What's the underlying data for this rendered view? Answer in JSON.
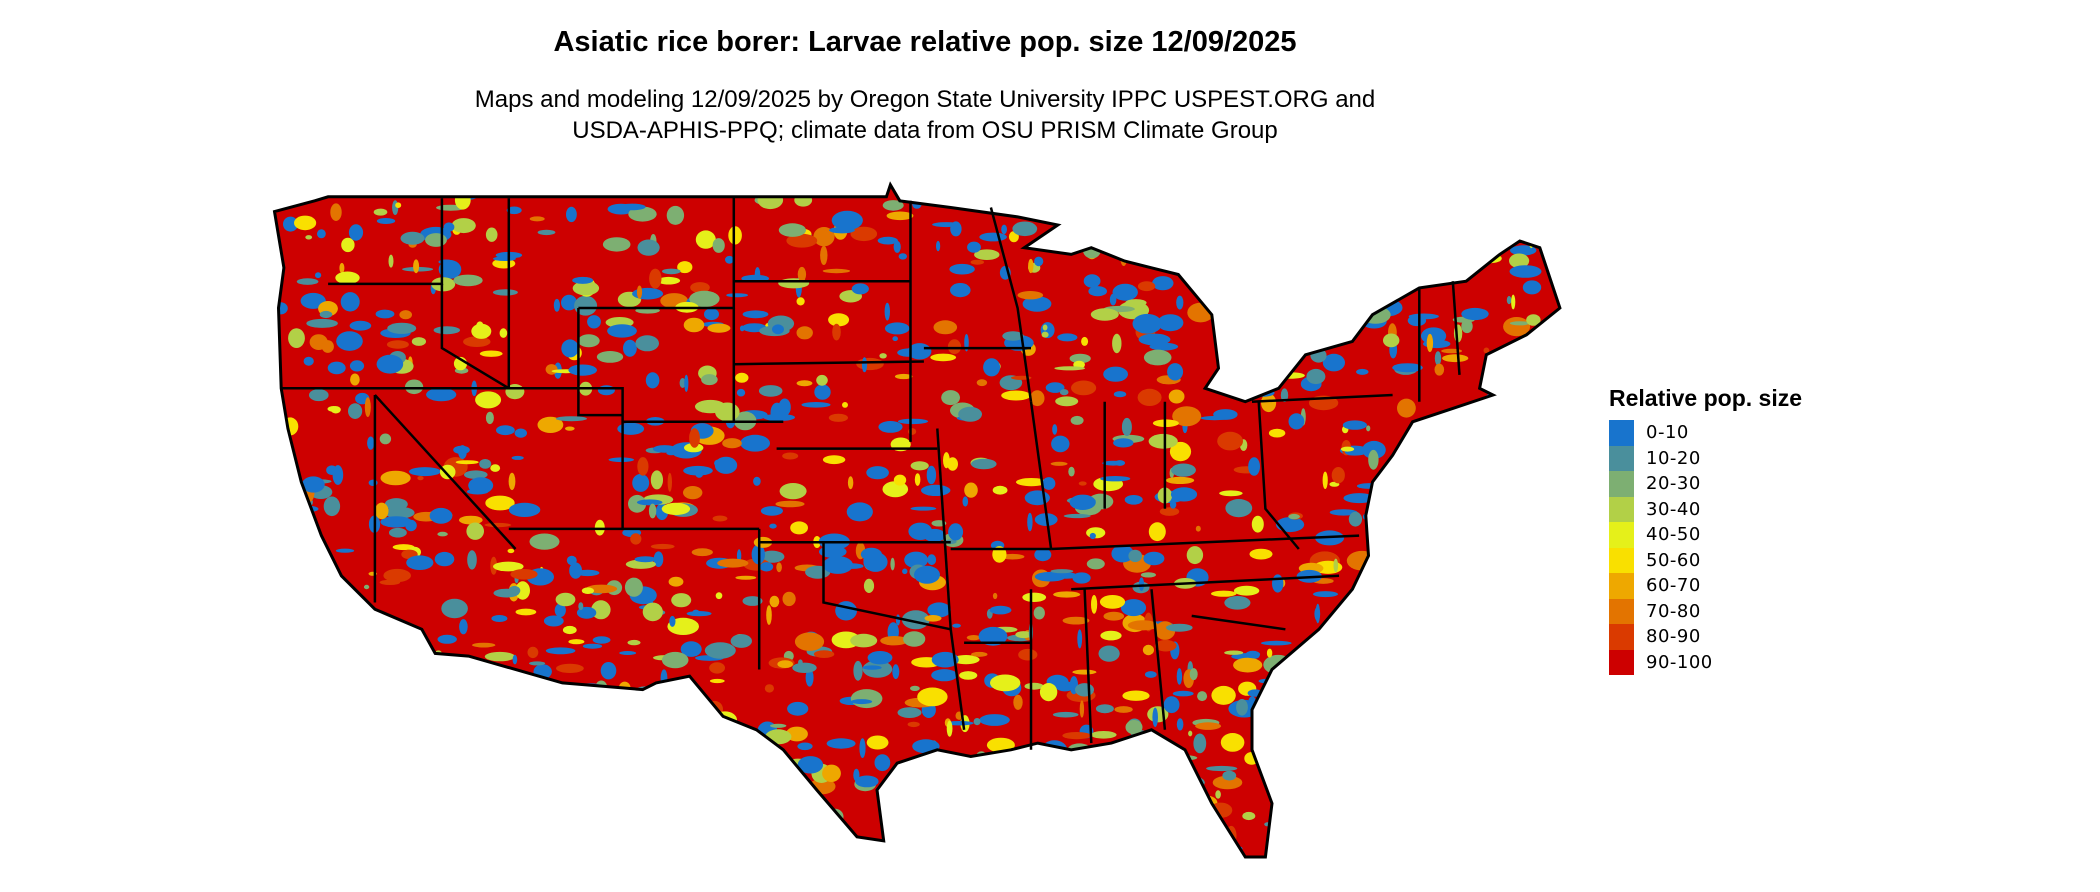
{
  "title": "Asiatic rice borer: Larvae relative pop. size 12/09/2025",
  "subtitle_line1": "Maps and modeling 12/09/2025 by Oregon State University IPPC USPEST.ORG and",
  "subtitle_line2": "USDA-APHIS-PPQ; climate data from OSU PRISM Climate Group",
  "map": {
    "region": "Contiguous United States",
    "borders": "state boundaries",
    "dominant_class": "90-100"
  },
  "legend": {
    "title": "Relative pop. size",
    "items": [
      {
        "label": "0-10",
        "color": "#1874CD"
      },
      {
        "label": "10-20",
        "color": "#4A8F9C"
      },
      {
        "label": "20-30",
        "color": "#7DAF72"
      },
      {
        "label": "30-40",
        "color": "#B2D047"
      },
      {
        "label": "40-50",
        "color": "#E5F01A"
      },
      {
        "label": "50-60",
        "color": "#F9E000"
      },
      {
        "label": "60-70",
        "color": "#EEA800"
      },
      {
        "label": "70-80",
        "color": "#E37400"
      },
      {
        "label": "80-90",
        "color": "#DA3A00"
      },
      {
        "label": "90-100",
        "color": "#CD0000"
      }
    ]
  }
}
